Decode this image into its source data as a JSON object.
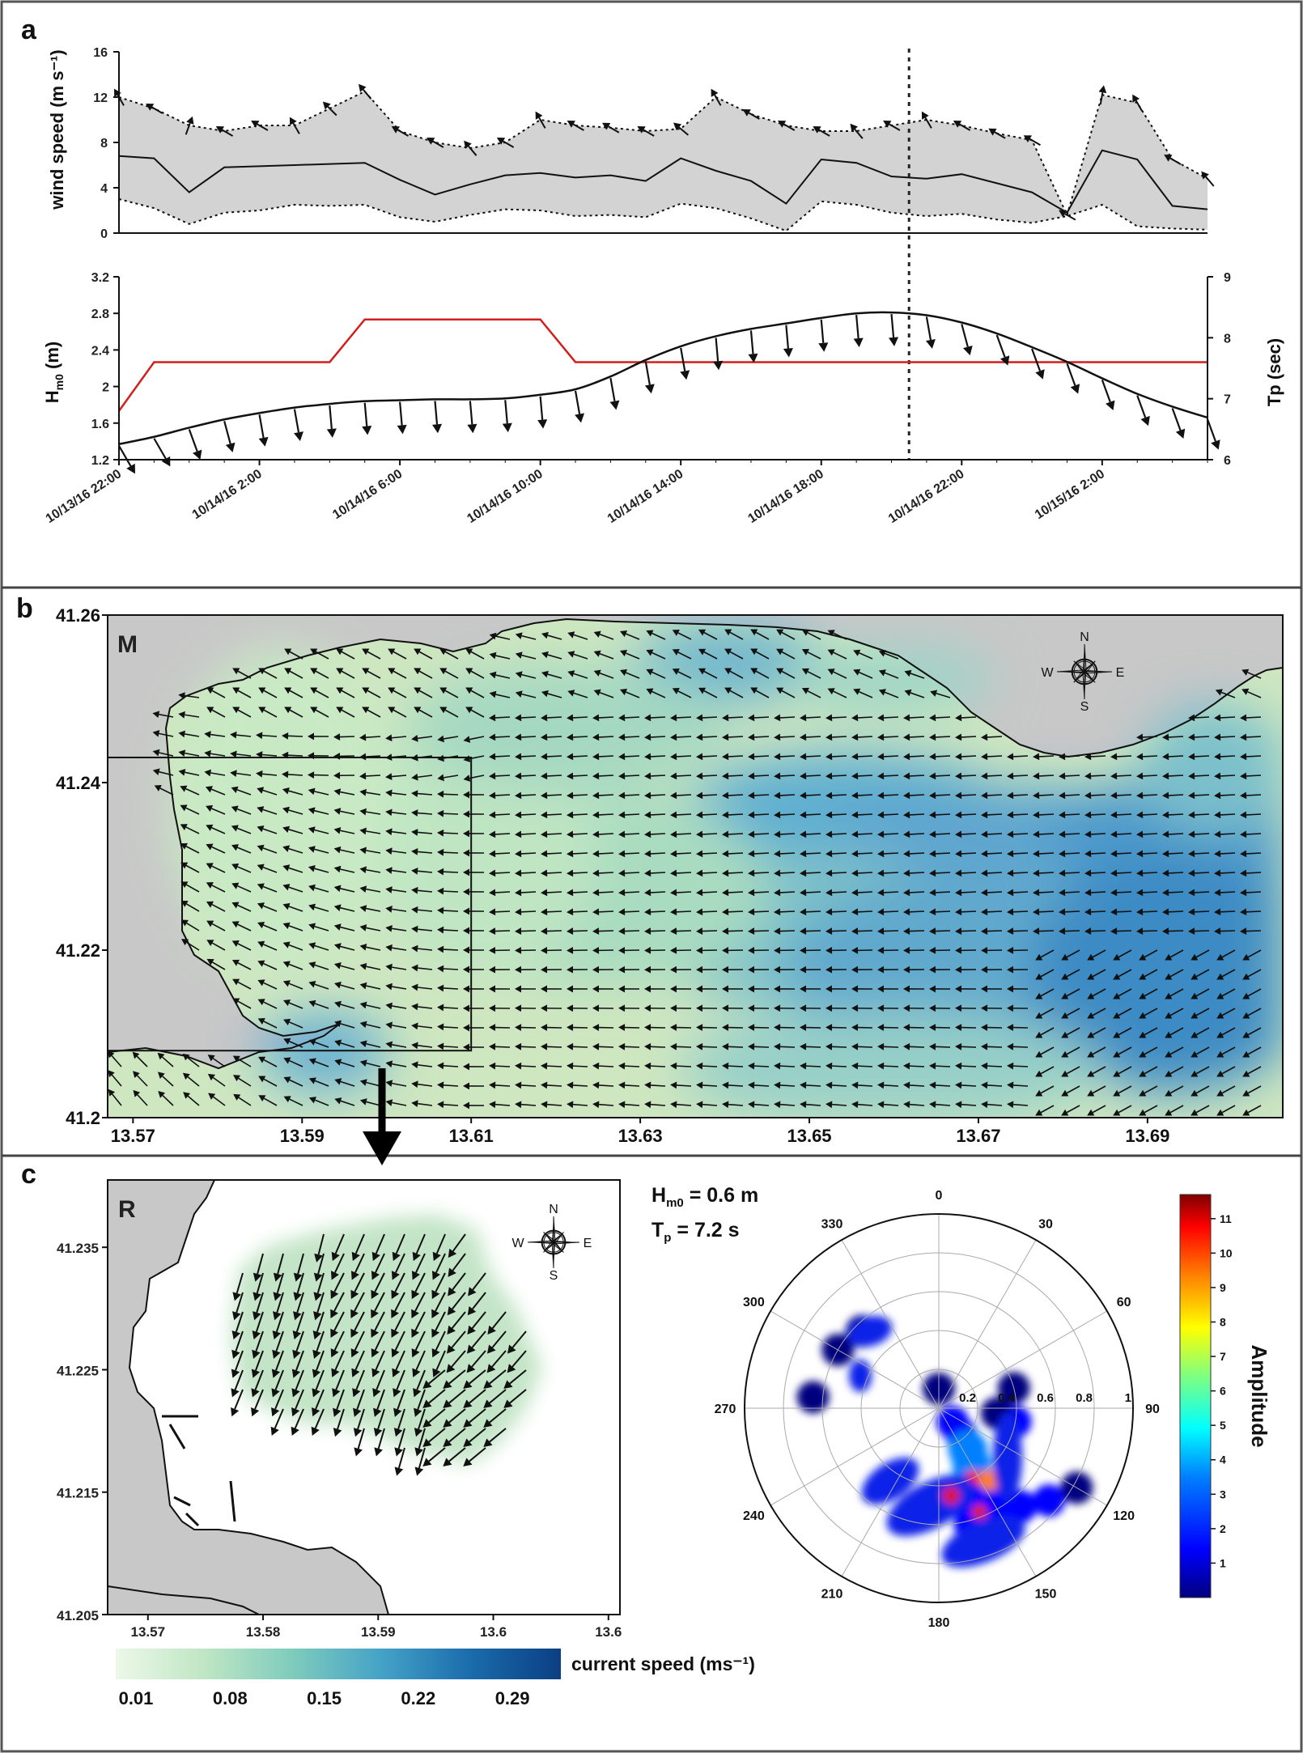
{
  "panels": {
    "a": "a",
    "b": "b",
    "c": "c"
  },
  "chart_data": [
    {
      "panel": "a",
      "type": "line",
      "ylabel": "wind speed (m s⁻¹)",
      "ylim": [
        0,
        16
      ],
      "yticks": [
        "0",
        "4",
        "8",
        "12",
        "16"
      ],
      "x_ticks": [
        "10/13/16 22:00",
        "10/14/16 2:00",
        "10/14/16 6:00",
        "10/14/16 10:00",
        "10/14/16 14:00",
        "10/14/16 18:00",
        "10/14/16 22:00",
        "10/15/16 2:00"
      ],
      "x_hours": [
        0,
        1,
        2,
        3,
        4,
        5,
        6,
        7,
        8,
        9,
        10,
        11,
        12,
        13,
        14,
        15,
        16,
        17,
        18,
        19,
        20,
        21,
        22,
        23,
        24,
        25,
        26,
        27,
        28,
        29,
        30,
        31
      ],
      "series": [
        {
          "style": "dotted",
          "values": [
            12.0,
            11.0,
            9.5,
            9.0,
            9.5,
            9.5,
            11.0,
            12.5,
            9.0,
            8.0,
            7.5,
            8.0,
            10.0,
            9.5,
            9.3,
            9.0,
            9.2,
            12.0,
            10.5,
            9.5,
            9.0,
            9.0,
            9.5,
            10.0,
            9.5,
            8.8,
            8.2,
            1.6,
            12.2,
            11.5,
            6.5,
            4.8
          ]
        },
        {
          "style": "solid",
          "values": [
            6.8,
            6.6,
            3.6,
            5.8,
            5.9,
            6.0,
            6.1,
            6.2,
            4.7,
            3.4,
            4.3,
            5.1,
            5.3,
            4.9,
            5.1,
            4.6,
            6.6,
            5.5,
            4.6,
            2.6,
            6.5,
            6.2,
            5.0,
            4.8,
            5.2,
            4.4,
            3.6,
            1.8,
            7.3,
            6.5,
            2.4,
            2.1
          ]
        },
        {
          "style": "dotted",
          "values": [
            3.0,
            2.2,
            0.8,
            1.8,
            2.0,
            2.5,
            2.4,
            2.5,
            1.4,
            1.0,
            1.6,
            2.1,
            2.0,
            1.5,
            1.6,
            1.4,
            2.6,
            2.2,
            1.3,
            0.2,
            2.8,
            2.5,
            1.8,
            1.5,
            1.7,
            1.2,
            0.9,
            1.5,
            2.5,
            0.6,
            0.4,
            0.3
          ]
        }
      ],
      "wind_dir_deg": [
        330,
        300,
        20,
        300,
        300,
        330,
        315,
        320,
        300,
        300,
        320,
        300,
        330,
        300,
        300,
        300,
        310,
        330,
        300,
        300,
        300,
        320,
        300,
        330,
        300,
        300,
        300,
        300,
        10,
        330,
        300,
        320
      ],
      "event_marker_hour": 22.5
    },
    {
      "panel": "a",
      "type": "line",
      "ylabel": "Hm0 (m)",
      "ylabel_main": "H",
      "ylabel_sub": "m0",
      "ylabel_unit": " (m)",
      "ylim": [
        1.2,
        3.2
      ],
      "yticks": [
        "1.2",
        "1.6",
        "2",
        "2.4",
        "2.8",
        "3.2"
      ],
      "y2label": "Tp (sec)",
      "y2lim": [
        6,
        9
      ],
      "y2ticks": [
        "6",
        "7",
        "8",
        "9"
      ],
      "x_hours": [
        0,
        1,
        2,
        3,
        4,
        5,
        6,
        7,
        8,
        9,
        10,
        11,
        12,
        13,
        14,
        15,
        16,
        17,
        18,
        19,
        20,
        21,
        22,
        23,
        24,
        25,
        26,
        27,
        28,
        29,
        30,
        31
      ],
      "Hm0": [
        1.37,
        1.45,
        1.55,
        1.64,
        1.71,
        1.77,
        1.81,
        1.84,
        1.85,
        1.86,
        1.86,
        1.87,
        1.91,
        1.97,
        2.11,
        2.29,
        2.44,
        2.55,
        2.63,
        2.69,
        2.75,
        2.8,
        2.81,
        2.78,
        2.7,
        2.58,
        2.43,
        2.27,
        2.09,
        1.92,
        1.78,
        1.66
      ],
      "wave_dir_deg": [
        150,
        150,
        160,
        165,
        170,
        170,
        175,
        175,
        175,
        175,
        175,
        175,
        175,
        170,
        170,
        170,
        170,
        175,
        175,
        175,
        175,
        175,
        175,
        170,
        165,
        160,
        160,
        160,
        160,
        160,
        160,
        160
      ],
      "Tp_hours": [
        0,
        1,
        6,
        7,
        12,
        13,
        31
      ],
      "Tp": [
        6.8,
        7.6,
        7.6,
        8.3,
        8.3,
        7.6,
        7.6
      ]
    },
    {
      "panel": "b",
      "type": "map",
      "inset_label": "M",
      "xticks": [
        "13.57",
        "13.59",
        "13.61",
        "13.63",
        "13.65",
        "13.67",
        "13.69"
      ],
      "xvals": [
        13.57,
        13.59,
        13.61,
        13.63,
        13.65,
        13.67,
        13.69
      ],
      "yticks": [
        "41.2",
        "41.22",
        "41.24",
        "41.26"
      ],
      "yvals": [
        41.2,
        41.22,
        41.24,
        41.26
      ],
      "xlim": [
        13.567,
        13.706
      ],
      "ylim": [
        41.2,
        41.26
      ],
      "rect": {
        "lon": [
          13.567,
          13.61
        ],
        "lat": [
          41.208,
          41.243
        ]
      },
      "compass": [
        "N",
        "S",
        "W",
        "E"
      ]
    },
    {
      "panel": "c",
      "type": "map",
      "inset_label": "R",
      "xticks": [
        "13.57",
        "13.58",
        "13.59",
        "13.6",
        "13.6"
      ],
      "xvals": [
        13.57,
        13.58,
        13.59,
        13.6,
        13.61
      ],
      "yticks": [
        "41.205",
        "41.215",
        "41.225",
        "41.235"
      ],
      "yvals": [
        41.205,
        41.215,
        41.225,
        41.235
      ],
      "xlim": [
        13.5665,
        13.611
      ],
      "ylim": [
        41.205,
        41.2405
      ],
      "compass": [
        "N",
        "S",
        "W",
        "E"
      ],
      "colorbar": {
        "label": "current speed (ms⁻¹)",
        "ticks": [
          "0.01",
          "0.08",
          "0.15",
          "0.22",
          "0.29"
        ],
        "colors": [
          "#edf8e9",
          "#bfe6c4",
          "#7ecbbd",
          "#43a2c6",
          "#1a6bab",
          "#0b3f82"
        ]
      }
    },
    {
      "panel": "c",
      "type": "polar",
      "annotations": [
        "Hm0 = 0.6 m",
        "Tp = 7.2 s"
      ],
      "hm0": {
        "main": "H",
        "sub": "m0",
        "rest": " = 0.6 m"
      },
      "tp": {
        "main": "T",
        "sub": "p",
        "rest": " = 7.2 s"
      },
      "angle_labels": [
        "0",
        "30",
        "60",
        "90",
        "120",
        "150",
        "180",
        "210",
        "240",
        "270",
        "300",
        "330"
      ],
      "radius_labels": [
        "0.2",
        "0.4",
        "0.6",
        "0.8",
        "1"
      ],
      "colorbar": {
        "label": "Amplitude",
        "ticks": [
          "1",
          "2",
          "3",
          "4",
          "5",
          "6",
          "7",
          "8",
          "9",
          "10",
          "11"
        ],
        "range": [
          0,
          11.7
        ],
        "colors": [
          "#00007f",
          "#0000ff",
          "#0080ff",
          "#00ffff",
          "#80ff80",
          "#ffff00",
          "#ff8000",
          "#ff0000",
          "#800000"
        ]
      },
      "blobs": [
        {
          "dir": 135,
          "freq": 0.1,
          "amp": 2.0
        },
        {
          "dir": 140,
          "freq": 0.18,
          "amp": 2.5
        },
        {
          "dir": 145,
          "freq": 0.26,
          "amp": 3.5
        },
        {
          "dir": 150,
          "freq": 0.34,
          "amp": 4.5
        },
        {
          "dir": 155,
          "freq": 0.42,
          "amp": 11.0
        },
        {
          "dir": 145,
          "freq": 0.46,
          "amp": 10.0
        },
        {
          "dir": 160,
          "freq": 0.5,
          "amp": 2.5
        },
        {
          "dir": 150,
          "freq": 0.58,
          "amp": 2.0
        },
        {
          "dir": 140,
          "freq": 0.66,
          "amp": 1.5
        },
        {
          "dir": 130,
          "freq": 0.74,
          "amp": 1.5
        },
        {
          "dir": 120,
          "freq": 0.82,
          "amp": 1.2
        },
        {
          "dir": 175,
          "freq": 0.45,
          "amp": 1.8
        },
        {
          "dir": 165,
          "freq": 0.62,
          "amp": 1.4
        },
        {
          "dir": 100,
          "freq": 0.4,
          "amp": 1.5
        },
        {
          "dir": 95,
          "freq": 0.3,
          "amp": 1.2
        },
        {
          "dir": 75,
          "freq": 0.4,
          "amp": 1.0
        },
        {
          "dir": 275,
          "freq": 0.65,
          "amp": 1.0
        },
        {
          "dir": 300,
          "freq": 0.6,
          "amp": 1.0
        },
        {
          "dir": 315,
          "freq": 0.56,
          "amp": 1.0
        },
        {
          "dir": 0,
          "freq": 0.1,
          "amp": 0.8
        }
      ]
    }
  ]
}
